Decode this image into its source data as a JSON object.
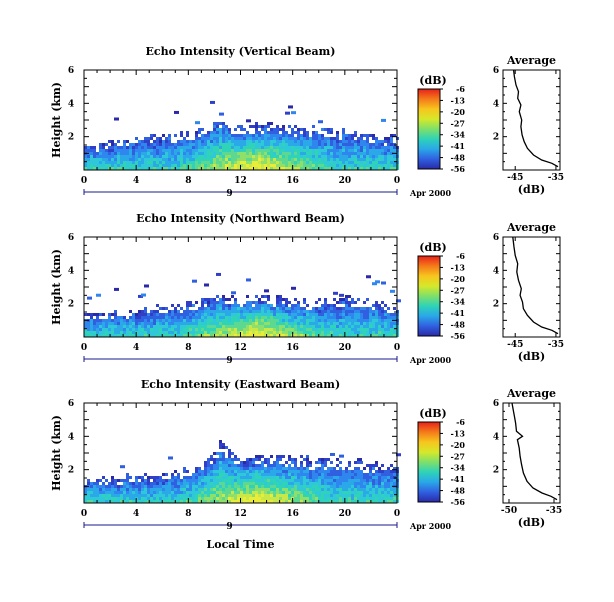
{
  "figure": {
    "xlabel": "Local Time",
    "date_label": "Apr 2000",
    "colorbar_unit": "(dB)",
    "colorbar_ticks": [
      "-6",
      "-13",
      "-20",
      "-27",
      "-34",
      "-41",
      "-48",
      "-56"
    ],
    "colorbar_colors": [
      "#e8201a",
      "#f47a1a",
      "#f7c51e",
      "#d6e82a",
      "#7fe06a",
      "#2fd3b8",
      "#2aa8e8",
      "#3060e0",
      "#2a2aa8"
    ]
  },
  "chart_data": [
    {
      "type": "heatmap",
      "title": "Echo Intensity (Vertical Beam)",
      "xlabel": "Local Time",
      "ylabel": "Height (km)",
      "x_ticks": [
        "0",
        "4",
        "8",
        "12",
        "16",
        "20",
        "0"
      ],
      "y_ticks": [
        "2",
        "4",
        "6"
      ],
      "xlim": [
        0,
        24
      ],
      "ylim": [
        0,
        6
      ],
      "day_marker": "9",
      "colorbar": {
        "unit": "(dB)",
        "ticks": [
          -6,
          -13,
          -20,
          -27,
          -34,
          -41,
          -48,
          -56
        ]
      },
      "echo_top_km": [
        [
          0,
          1.5
        ],
        [
          2,
          1.7
        ],
        [
          4,
          1.9
        ],
        [
          6,
          2.0
        ],
        [
          8,
          2.2
        ],
        [
          9.5,
          2.6
        ],
        [
          10,
          3.1
        ],
        [
          11,
          2.8
        ],
        [
          12,
          2.6
        ],
        [
          14,
          2.7
        ],
        [
          16,
          2.6
        ],
        [
          18,
          2.5
        ],
        [
          20,
          2.3
        ],
        [
          22,
          2.1
        ],
        [
          24,
          1.9
        ]
      ]
    },
    {
      "type": "line",
      "title": "Average",
      "xlabel": "(dB)",
      "x_ticks": [
        "-45",
        "-35"
      ],
      "y_ticks": [
        "2",
        "4",
        "6"
      ],
      "xlim": [
        -48,
        -34
      ],
      "ylim": [
        0,
        6
      ],
      "series": [
        {
          "x": [
            -34.5,
            -36,
            -38.5,
            -40.5,
            -42,
            -42.8,
            -43.3,
            -43.6,
            -43.4,
            -44,
            -43.6,
            -44.4,
            -44.2,
            -44.8,
            -45.2,
            -45.4
          ],
          "y": [
            0.2,
            0.4,
            0.6,
            0.9,
            1.3,
            1.7,
            2.1,
            2.6,
            3.0,
            3.5,
            3.9,
            4.3,
            4.7,
            5.1,
            5.6,
            6.0
          ]
        }
      ]
    },
    {
      "type": "heatmap",
      "title": "Echo Intensity (Northward Beam)",
      "xlabel": "Local Time",
      "ylabel": "Height (km)",
      "x_ticks": [
        "0",
        "4",
        "8",
        "12",
        "16",
        "20",
        "0"
      ],
      "y_ticks": [
        "2",
        "4",
        "6"
      ],
      "xlim": [
        0,
        24
      ],
      "ylim": [
        0,
        6
      ],
      "day_marker": "9",
      "colorbar": {
        "unit": "(dB)",
        "ticks": [
          -6,
          -13,
          -20,
          -27,
          -34,
          -41,
          -48,
          -56
        ]
      },
      "echo_top_km": [
        [
          0,
          1.3
        ],
        [
          2,
          1.4
        ],
        [
          4,
          1.6
        ],
        [
          6,
          1.8
        ],
        [
          8,
          2.0
        ],
        [
          10,
          2.4
        ],
        [
          12,
          2.3
        ],
        [
          14,
          2.4
        ],
        [
          16,
          2.2
        ],
        [
          18,
          2.1
        ],
        [
          20,
          2.3
        ],
        [
          22,
          2.2
        ],
        [
          24,
          1.6
        ]
      ]
    },
    {
      "type": "line",
      "title": "Average",
      "xlabel": "(dB)",
      "x_ticks": [
        "-45",
        "-35"
      ],
      "y_ticks": [
        "2",
        "4",
        "6"
      ],
      "xlim": [
        -48,
        -34
      ],
      "ylim": [
        0,
        6
      ],
      "series": [
        {
          "x": [
            -34.5,
            -36,
            -38.5,
            -40.5,
            -42,
            -43,
            -43.2,
            -43.8,
            -43.5,
            -44.2,
            -44.6,
            -44.4,
            -45,
            -45.3,
            -45.6
          ],
          "y": [
            0.2,
            0.4,
            0.6,
            0.9,
            1.3,
            1.7,
            2.1,
            2.5,
            2.9,
            3.4,
            3.9,
            4.4,
            4.9,
            5.4,
            6.0
          ]
        }
      ]
    },
    {
      "type": "heatmap",
      "title": "Echo Intensity (Eastward Beam)",
      "xlabel": "Local Time",
      "ylabel": "Height (km)",
      "x_ticks": [
        "0",
        "4",
        "8",
        "12",
        "16",
        "20",
        "0"
      ],
      "y_ticks": [
        "2",
        "4",
        "6"
      ],
      "xlim": [
        0,
        24
      ],
      "ylim": [
        0,
        6
      ],
      "day_marker": "9",
      "colorbar": {
        "unit": "(dB)",
        "ticks": [
          -6,
          -13,
          -20,
          -27,
          -34,
          -41,
          -48,
          -56
        ]
      },
      "echo_top_km": [
        [
          0,
          1.4
        ],
        [
          2,
          1.5
        ],
        [
          4,
          1.6
        ],
        [
          6,
          1.7
        ],
        [
          8,
          2.0
        ],
        [
          9.5,
          2.6
        ],
        [
          10.5,
          3.7
        ],
        [
          11.5,
          2.8
        ],
        [
          12,
          2.6
        ],
        [
          14,
          2.8
        ],
        [
          16,
          2.7
        ],
        [
          18,
          2.6
        ],
        [
          20,
          2.5
        ],
        [
          22,
          2.3
        ],
        [
          24,
          2.1
        ]
      ]
    },
    {
      "type": "line",
      "title": "Average",
      "xlabel": "(dB)",
      "x_ticks": [
        "-50",
        "-35"
      ],
      "y_ticks": [
        "2",
        "4",
        "6"
      ],
      "xlim": [
        -52,
        -33
      ],
      "ylim": [
        0,
        6
      ],
      "series": [
        {
          "x": [
            -34,
            -36,
            -39,
            -42,
            -44,
            -45.2,
            -45.8,
            -46.3,
            -46.6,
            -47.2,
            -45.5,
            -47.5,
            -47.8,
            -48.2,
            -48.6,
            -49
          ],
          "y": [
            0.2,
            0.4,
            0.6,
            0.9,
            1.3,
            1.8,
            2.3,
            2.8,
            3.3,
            3.8,
            4.0,
            4.3,
            4.8,
            5.2,
            5.6,
            6.0
          ]
        }
      ]
    }
  ]
}
